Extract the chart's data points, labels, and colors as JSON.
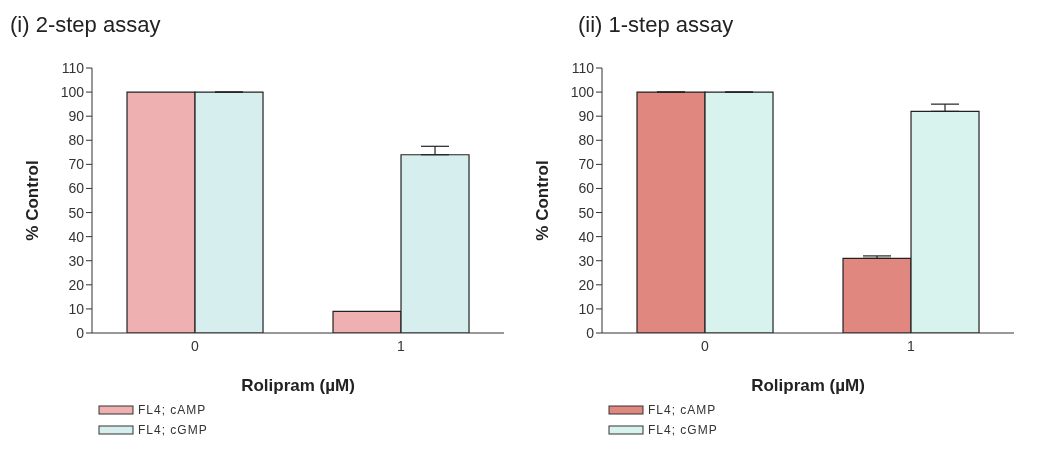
{
  "chart_data": [
    {
      "type": "bar",
      "title": "(i)   2-step assay",
      "xlabel": "Rolipram (µM)",
      "ylabel": "% Control",
      "categories": [
        "0",
        "1"
      ],
      "ylim": [
        0,
        110
      ],
      "yticks": [
        0,
        10,
        20,
        30,
        40,
        50,
        60,
        70,
        80,
        90,
        100,
        110
      ],
      "grid": false,
      "legend": "bottom left",
      "series": [
        {
          "name": "FL4; cAMP",
          "color": "#eeb0b0",
          "values": [
            100,
            9
          ]
        },
        {
          "name": "FL4; cGMP",
          "color": "#d6eeee",
          "values": [
            100,
            74
          ],
          "errors": [
            null,
            [
              74,
              77.5
            ]
          ]
        }
      ]
    },
    {
      "type": "bar",
      "title": "(ii)   1-step assay",
      "xlabel": "Rolipram (µM)",
      "ylabel": "% Control",
      "categories": [
        "0",
        "1"
      ],
      "ylim": [
        0,
        110
      ],
      "yticks": [
        0,
        10,
        20,
        30,
        40,
        50,
        60,
        70,
        80,
        90,
        100,
        110
      ],
      "grid": false,
      "legend": "bottom left",
      "series": [
        {
          "name": "FL4; cAMP",
          "color": "#e0877f",
          "values": [
            100,
            31
          ],
          "errors": [
            null,
            [
              31,
              32
            ]
          ]
        },
        {
          "name": "FL4; cGMP",
          "color": "#d8f2ee",
          "values": [
            100,
            92
          ],
          "errors": [
            null,
            [
              92,
              95
            ]
          ]
        }
      ]
    }
  ]
}
